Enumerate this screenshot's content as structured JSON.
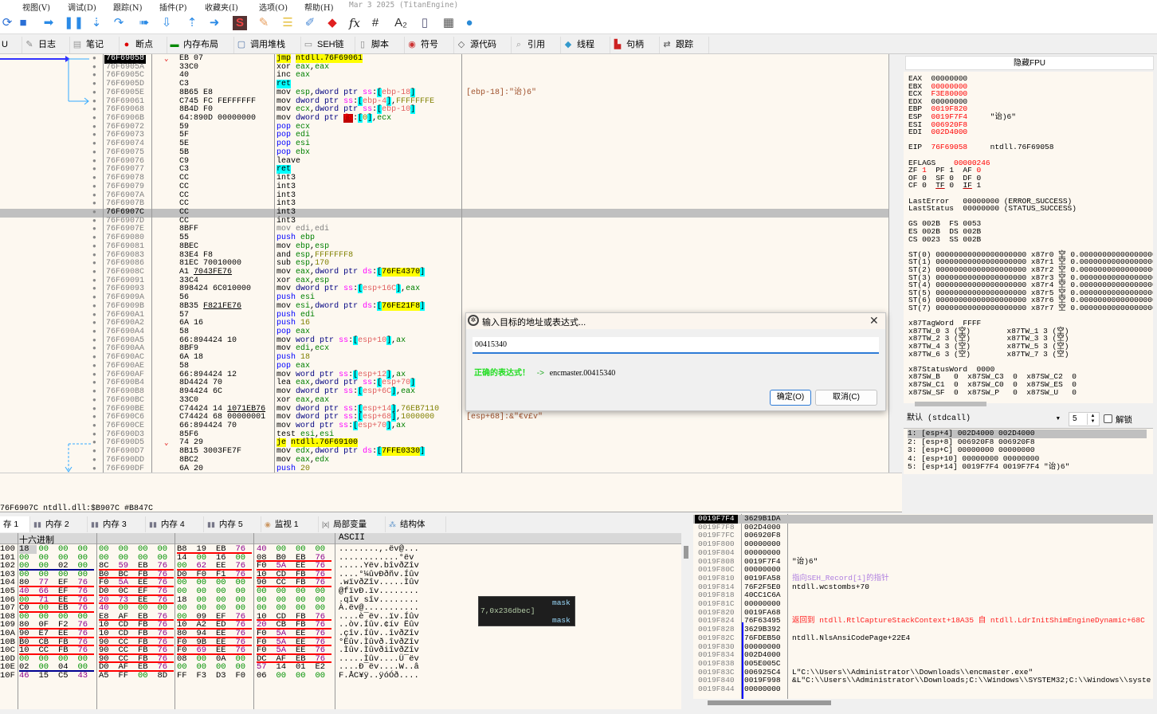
{
  "menu": [
    "视图(V)",
    "调试(D)",
    "跟踪(N)",
    "插件(P)",
    "收藏夹(I)",
    "选项(O)",
    "帮助(H)"
  ],
  "build_info": "Mar 3 2025 (TitanEngine)",
  "toolbar": [
    "restart",
    "stop",
    "run",
    "pause",
    "step-into",
    "step-over",
    "trace-into",
    "trace-over",
    "execute-till-return",
    "run-to-user-code",
    "scylla",
    "patch",
    "comment",
    "label",
    "bookmark",
    "function",
    "hash",
    "font",
    "device",
    "calculator",
    "globe"
  ],
  "tabs": [
    {
      "label": "U",
      "icon": "cpu"
    },
    {
      "label": "日志",
      "icon": "log"
    },
    {
      "label": "笔记",
      "icon": "notes"
    },
    {
      "label": "断点",
      "icon": "breakpoint"
    },
    {
      "label": "内存布局",
      "icon": "memory-map"
    },
    {
      "label": "调用堆栈",
      "icon": "call-stack"
    },
    {
      "label": "SEH链",
      "icon": "seh"
    },
    {
      "label": "脚本",
      "icon": "script"
    },
    {
      "label": "符号",
      "icon": "symbol"
    },
    {
      "label": "源代码",
      "icon": "source"
    },
    {
      "label": "引用",
      "icon": "reference"
    },
    {
      "label": "线程",
      "icon": "thread"
    },
    {
      "label": "句柄",
      "icon": "handle"
    },
    {
      "label": "跟踪",
      "icon": "trace"
    }
  ],
  "disasm": [
    [
      "76F69058",
      "EB 07",
      "jmp",
      "ntdll.76F69061",
      ""
    ],
    [
      "76F6905A",
      "33C0",
      "xor",
      "eax,eax",
      ""
    ],
    [
      "76F6905C",
      "40",
      "inc",
      "eax",
      ""
    ],
    [
      "76F6905D",
      "C3",
      "ret",
      "",
      ""
    ],
    [
      "76F6905E",
      "8B65 E8",
      "mov",
      "esp,dword ptr ss:[ebp-18]",
      "[ebp-18]:\"诒)6\""
    ],
    [
      "76F69061",
      "C745 FC FEFFFFFF",
      "mov",
      "dword ptr ss:[ebp-4],FFFFFFFE",
      ""
    ],
    [
      "76F69068",
      "8B4D F0",
      "mov",
      "ecx,dword ptr ss:[ebp-10]",
      ""
    ],
    [
      "76F6906B",
      "64:890D 00000000",
      "mov",
      "dword ptr fs:[0],ecx",
      ""
    ],
    [
      "76F69072",
      "59",
      "pop",
      "ecx",
      ""
    ],
    [
      "76F69073",
      "5F",
      "pop",
      "edi",
      ""
    ],
    [
      "76F69074",
      "5E",
      "pop",
      "esi",
      ""
    ],
    [
      "76F69075",
      "5B",
      "pop",
      "ebx",
      ""
    ],
    [
      "76F69076",
      "C9",
      "leave",
      "",
      ""
    ],
    [
      "76F69077",
      "C3",
      "ret",
      "",
      ""
    ],
    [
      "76F69078",
      "CC",
      "int3",
      "",
      ""
    ],
    [
      "76F69079",
      "CC",
      "int3",
      "",
      ""
    ],
    [
      "76F6907A",
      "CC",
      "int3",
      "",
      ""
    ],
    [
      "76F6907B",
      "CC",
      "int3",
      "",
      ""
    ],
    [
      "76F6907C",
      "CC",
      "int3",
      "",
      ""
    ],
    [
      "76F6907D",
      "CC",
      "int3",
      "",
      ""
    ],
    [
      "76F6907E",
      "8BFF",
      "mov",
      "edi,edi",
      ""
    ],
    [
      "76F69080",
      "55",
      "push",
      "ebp",
      ""
    ],
    [
      "76F69081",
      "8BEC",
      "mov",
      "ebp,esp",
      ""
    ],
    [
      "76F69083",
      "83E4 F8",
      "and",
      "esp,FFFFFFF8",
      ""
    ],
    [
      "76F69086",
      "81EC 70010000",
      "sub",
      "esp,170",
      ""
    ],
    [
      "76F6908C",
      "A1 7043FE76",
      "mov",
      "eax,dword ptr ds:[76FE4370]",
      ""
    ],
    [
      "76F69091",
      "33C4",
      "xor",
      "eax,esp",
      ""
    ],
    [
      "76F69093",
      "898424 6C010000",
      "mov",
      "dword ptr ss:[esp+16C],eax",
      ""
    ],
    [
      "76F6909A",
      "56",
      "push",
      "esi",
      ""
    ],
    [
      "76F6909B",
      "8B35 F821FE76",
      "mov",
      "esi,dword ptr ds:[76FE21F8]",
      ""
    ],
    [
      "76F690A1",
      "57",
      "push",
      "edi",
      ""
    ],
    [
      "76F690A2",
      "6A 16",
      "push",
      "16",
      ""
    ],
    [
      "76F690A4",
      "58",
      "pop",
      "eax",
      ""
    ],
    [
      "76F690A5",
      "66:894424 10",
      "mov",
      "word ptr ss:[esp+10],ax",
      ""
    ],
    [
      "76F690AA",
      "8BF9",
      "mov",
      "edi,ecx",
      ""
    ],
    [
      "76F690AC",
      "6A 18",
      "push",
      "18",
      ""
    ],
    [
      "76F690AE",
      "58",
      "pop",
      "eax",
      ""
    ],
    [
      "76F690AF",
      "66:894424 12",
      "mov",
      "word ptr ss:[esp+12],ax",
      ""
    ],
    [
      "76F690B4",
      "8D4424 70",
      "lea",
      "eax,dword ptr ss:[esp+70]",
      ""
    ],
    [
      "76F690B8",
      "894424 6C",
      "mov",
      "dword ptr ss:[esp+6C],eax",
      ""
    ],
    [
      "76F690BC",
      "33C0",
      "xor",
      "eax,eax",
      ""
    ],
    [
      "76F690BE",
      "C74424 14 1071EB76",
      "mov",
      "dword ptr ss:[esp+14],76EB7110",
      ""
    ],
    [
      "76F690C6",
      "C74424 68 00000001",
      "mov",
      "dword ptr ss:[esp+68],1000000",
      "[esp+68]:&\"€ѵ£ѵ\""
    ],
    [
      "76F690CE",
      "66:894424 70",
      "mov",
      "word ptr ss:[esp+70],ax",
      ""
    ],
    [
      "76F690D3",
      "85F6",
      "test",
      "esi,esi",
      ""
    ],
    [
      "76F690D5",
      "74 29",
      "je",
      "ntdll.76F69100",
      ""
    ],
    [
      "76F690D7",
      "8B15 3003FE7F",
      "mov",
      "edx,dword ptr ds:[7FFE0330]",
      ""
    ],
    [
      "76F690DD",
      "8BC2",
      "mov",
      "eax,edx",
      ""
    ],
    [
      "76F690DF",
      "6A 20",
      "push",
      "20",
      ""
    ]
  ],
  "disasm_current": "76F69058",
  "disasm_selected": "76F6907C",
  "info_line": "76F6907C ntdll.dll:$B907C #B847C",
  "registers": {
    "hide_fpu_label": "隐藏FPU",
    "lines": [
      [
        [
          "EAX  ",
          ""
        ],
        [
          "00000000",
          ""
        ]
      ],
      [
        [
          "EBX  ",
          ""
        ],
        [
          "00000000",
          "red"
        ]
      ],
      [
        [
          "ECX  ",
          ""
        ],
        [
          "F3E80000",
          "red"
        ]
      ],
      [
        [
          "EDX  ",
          ""
        ],
        [
          "00000000",
          ""
        ]
      ],
      [
        [
          "EBP  ",
          ""
        ],
        [
          "0019F820",
          "red"
        ]
      ],
      [
        [
          "ESP  ",
          ""
        ],
        [
          "0019F7F4",
          "red"
        ],
        [
          "     \"诒)6\"",
          ""
        ]
      ],
      [
        [
          "ESI  ",
          ""
        ],
        [
          "006920F8",
          "red"
        ]
      ],
      [
        [
          "EDI  ",
          ""
        ],
        [
          "002D4000",
          "red"
        ]
      ],
      [],
      [
        [
          "EIP  ",
          ""
        ],
        [
          "76F69058",
          "red"
        ],
        [
          "     ntdll.76F69058",
          ""
        ]
      ],
      [],
      [
        [
          "EFLAGS    ",
          ""
        ],
        [
          "00000246",
          "red"
        ]
      ],
      [
        [
          "ZF ",
          ""
        ],
        [
          "1",
          "red"
        ],
        [
          "  PF 1  AF ",
          ""
        ],
        [
          "0",
          "red"
        ]
      ],
      [
        [
          "OF 0  SF 0  DF 0",
          ""
        ]
      ],
      [
        [
          "CF 0  ",
          ""
        ],
        [
          "TF",
          "tfu"
        ],
        [
          " 0  ",
          ""
        ],
        [
          "IF",
          "tfu"
        ],
        [
          " 1",
          ""
        ]
      ],
      [],
      [
        [
          "LastError   00000000 (ERROR_SUCCESS)",
          ""
        ]
      ],
      [
        [
          "LastStatus  00000000 (STATUS_SUCCESS)",
          ""
        ]
      ],
      [],
      [
        [
          "GS 002B  FS 0053",
          ""
        ]
      ],
      [
        [
          "ES 002B  DS 002B",
          ""
        ]
      ],
      [
        [
          "CS 0023  SS 002B",
          ""
        ]
      ],
      [],
      [
        [
          "ST(0) 00000000000000000000 x87r0 空 0.000000000000000000",
          ""
        ]
      ],
      [
        [
          "ST(1) 00000000000000000000 x87r1 空 0.000000000000000000",
          ""
        ]
      ],
      [
        [
          "ST(2) 00000000000000000000 x87r2 空 0.000000000000000000",
          ""
        ]
      ],
      [
        [
          "ST(3) 00000000000000000000 x87r3 空 0.000000000000000000",
          ""
        ]
      ],
      [
        [
          "ST(4) 00000000000000000000 x87r4 空 0.000000000000000000",
          ""
        ]
      ],
      [
        [
          "ST(5) 00000000000000000000 x87r5 空 0.000000000000000000",
          ""
        ]
      ],
      [
        [
          "ST(6) 00000000000000000000 x87r6 空 0.000000000000000000",
          ""
        ]
      ],
      [
        [
          "ST(7) 00000000000000000000 x87r7 空 0.000000000000000000",
          ""
        ]
      ],
      [],
      [
        [
          "x87TagWord  FFFF",
          ""
        ]
      ],
      [
        [
          "x87TW_0 3 (空)        x87TW_1 3 (空)",
          ""
        ]
      ],
      [
        [
          "x87TW_2 3 (空)        x87TW_3 3 (空)",
          ""
        ]
      ],
      [
        [
          "x87TW_4 3 (空)        x87TW_5 3 (空)",
          ""
        ]
      ],
      [
        [
          "x87TW_6 3 (空)        x87TW_7 3 (空)",
          ""
        ]
      ],
      [],
      [
        [
          "x87StatusWord  0000",
          ""
        ]
      ],
      [
        [
          "x87SW_B   0  x87SW_C3  0  x87SW_C2  0",
          ""
        ]
      ],
      [
        [
          "x87SW_C1  0  x87SW_C0  0  x87SW_ES  0",
          ""
        ]
      ],
      [
        [
          "x87SW_SF  0  x87SW_P   0  x87SW_U   0",
          ""
        ]
      ]
    ]
  },
  "call_convention": {
    "selected": "默认 (stdcall)",
    "arg_count": "5",
    "unlock_label": "解锁",
    "unlock_checked": false
  },
  "args": [
    "1: [esp+4] 002D4000 002D4000",
    "2: [esp+8] 006920F8 006920F8",
    "3: [esp+C] 00000000 00000000",
    "4: [esp+10] 00000000 00000000",
    "5: [esp+14] 0019F7F4 0019F7F4 \"诒)6\""
  ],
  "memory_tabs": [
    {
      "label": "存 1",
      "icon": "memory"
    },
    {
      "label": "内存 2",
      "icon": "memory"
    },
    {
      "label": "内存 3",
      "icon": "memory"
    },
    {
      "label": "内存 4",
      "icon": "memory"
    },
    {
      "label": "内存 5",
      "icon": "memory"
    },
    {
      "label": "监视 1",
      "icon": "watch"
    },
    {
      "label": "局部变量",
      "icon": "locals"
    },
    {
      "label": "结构体",
      "icon": "struct"
    }
  ],
  "hex": {
    "header_hex": "十六进制",
    "header_ascii": "ASCII",
    "rows": [
      {
        "addr": "100",
        "bytes": "18 00 00 00 00 00 00 00 B8 19 EB 76 40 00 00 00",
        "marks": "--r-",
        "ascii": "........,.ëv@..."
      },
      {
        "addr": "101",
        "bytes": "00 00 00 00 00 00 00 00 14 00 16 00 08 B0 EB 76",
        "marks": "---r",
        "ascii": "............°ëv"
      },
      {
        "addr": "102",
        "bytes": "00 00 02 00 8C 59 EB 76 00 62 EE 76 F0 5A EE 76",
        "marks": "brrr",
        "ascii": ".....Yëv.bîvðZîv"
      },
      {
        "addr": "103",
        "bytes": "00 00 00 00 B0 BC FB 76 D0 F0 F1 76 10 CD FB 76",
        "marks": "-rrr",
        "ascii": "....°¼ûvÐðñv.Íûv"
      },
      {
        "addr": "104",
        "bytes": "80 77 EF 76 F0 5A EE 76 00 00 00 00 90 CC FB 76",
        "marks": "rr-r",
        "ascii": ".wïvðZîv.....Ìûv"
      },
      {
        "addr": "105",
        "bytes": "40 66 EF 76 D0 0C EF 76 00 00 00 00 00 00 00 00",
        "marks": "rr--",
        "ascii": "@fïvÐ.ïv........"
      },
      {
        "addr": "106",
        "bytes": "00 71 EE 76 20 73 EE 76 18 00 00 00 00 00 00 00",
        "marks": "rr--",
        "ascii": ".qîv sîv........"
      },
      {
        "addr": "107",
        "bytes": "C0 00 EB 76 40 00 00 00 00 00 00 00 00 00 00 00",
        "marks": "r---",
        "ascii": "À.ëv@..........."
      },
      {
        "addr": "108",
        "bytes": "00 00 00 00 E8 AF EB 76 00 09 EF 76 10 CD FB 76",
        "marks": "-rrr",
        "ascii": "....è¯ëv..ïv.Íûv"
      },
      {
        "addr": "109",
        "bytes": "80 0F F2 76 10 CD FB 76 10 A2 ED 76 20 CB FB 76",
        "marks": "rrrr",
        "ascii": "..òv.Íûv.¢ív Ëûv"
      },
      {
        "addr": "10A",
        "bytes": "90 E7 EE 76 10 CD FB 76 80 94 EE 76 F0 5A EE 76",
        "marks": "rrrr",
        "ascii": ".çîv.Íûv..îvðZîv"
      },
      {
        "addr": "10B",
        "bytes": "B0 CB FB 76 90 CC FB 76 F0 9B EE 76 F0 5A EE 76",
        "marks": "rrrr",
        "ascii": "°Ëûv.Ìûvð.îvðZîv"
      },
      {
        "addr": "10C",
        "bytes": "10 CC FB 76 90 CC FB 76 F0 69 EE 76 F0 5A EE 76",
        "marks": "rrrr",
        "ascii": ".Ìûv.ÌûvðiîvðZîv"
      },
      {
        "addr": "10D",
        "bytes": "00 00 00 00 90 CC FB 76 08 00 0A 00 DC AF EB 76",
        "marks": "-r-r",
        "ascii": ".....Ìûv....Ü¯ëv"
      },
      {
        "addr": "10E",
        "bytes": "02 00 04 00 D0 AF EB 76 00 00 00 00 57 14 01 E2",
        "marks": "br--",
        "ascii": "....Ð¯ëv....W..â"
      },
      {
        "addr": "10F",
        "bytes": "46 15 C5 43 A5 FF 00 8D FF F3 D3 F0 06 00 00 00",
        "marks": "----",
        "ascii": "F.ÅC¥ÿ..ÿóÓð...."
      }
    ]
  },
  "tooltip": {
    "line1": "7,0x236dbec]",
    "label1": "mask",
    "label2": "mask"
  },
  "stack": [
    [
      "0019F7F4",
      "3629B1DA",
      "",
      ""
    ],
    [
      "0019F7F8",
      "002D4000",
      "",
      ""
    ],
    [
      "0019F7FC",
      "006920F8",
      "",
      ""
    ],
    [
      "0019F800",
      "00000000",
      "",
      ""
    ],
    [
      "0019F804",
      "00000000",
      "",
      ""
    ],
    [
      "0019F808",
      "0019F7F4",
      "\"诒)6\"",
      ""
    ],
    [
      "0019F80C",
      "00000000",
      "",
      ""
    ],
    [
      "0019F810",
      "0019FA58",
      "指向SEH_Record[1]的指针",
      "seh"
    ],
    [
      "0019F814",
      "76F2F5E0",
      "ntdll.wcstombs+70",
      ""
    ],
    [
      "0019F818",
      "40CC1C6A",
      "",
      ""
    ],
    [
      "0019F81C",
      "00000000",
      "",
      ""
    ],
    [
      "0019F820",
      "0019FA68",
      "",
      ""
    ],
    [
      "0019F824",
      "76F63495",
      "返回到 ntdll.RtlCaptureStackContext+18A35 自 ntdll.LdrInitShimEngineDynamic+68C",
      "ret"
    ],
    [
      "0019F828",
      "3629B392",
      "",
      ""
    ],
    [
      "0019F82C",
      "76FDEB50",
      "ntdll.NlsAnsiCodePage+22E4",
      ""
    ],
    [
      "0019F830",
      "00000000",
      "",
      ""
    ],
    [
      "0019F834",
      "002D4000",
      "",
      ""
    ],
    [
      "0019F838",
      "005E005C",
      "",
      ""
    ],
    [
      "0019F83C",
      "006925C4",
      "L\"C:\\\\Users\\\\Administrator\\\\Downloads\\\\encmaster.exe\"",
      ""
    ],
    [
      "0019F840",
      "0019F998",
      "&L\"C:\\\\Users\\\\Administrator\\\\Downloads;C:\\\\Windows\\\\SYSTEM32;C:\\\\Windows\\\\syste",
      ""
    ],
    [
      "0019F844",
      "00000000",
      "",
      ""
    ]
  ],
  "dialog": {
    "title": "输入目标的地址或表达式...",
    "input_value": "00415340",
    "status_ok": "正确的表达式！",
    "status_arrow": "->",
    "status_result": "encmaster.00415340",
    "ok_label": "确定(O)",
    "cancel_label": "取消(C)"
  },
  "colors": {
    "panel_bg": "#fdf8f0",
    "highlight": "#ffff00",
    "changed_register": "#ff0000",
    "ok_text": "#22dd22"
  }
}
